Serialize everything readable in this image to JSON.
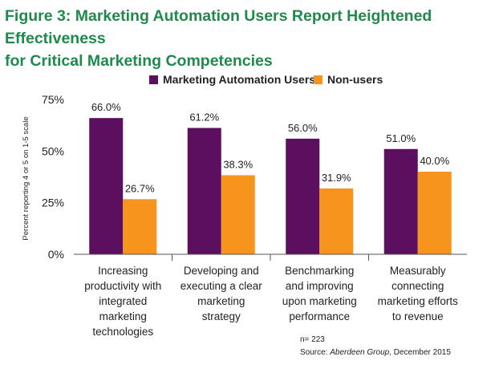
{
  "figure": {
    "title_line1": "Figure 3: Marketing Automation Users Report Heightened Effectiveness",
    "title_line2": "for Critical Marketing Competencies"
  },
  "footnote": {
    "n": "n= 223",
    "source_prefix": "Source: ",
    "source_org": "Aberdeen Group",
    "source_suffix": ", December 2015"
  },
  "colors": {
    "title": "#1f8a4c",
    "users": "#5b0f5e",
    "nonusers": "#f7941d",
    "axis": "#444444"
  },
  "chart_data": {
    "type": "bar",
    "ylabel": "Percent reporting 4 or 5 on 1-5 scale",
    "ylim": [
      0,
      75
    ],
    "yticks": [
      0,
      25,
      50,
      75
    ],
    "ytick_labels": [
      "0%",
      "25%",
      "50%",
      "75%"
    ],
    "legend_position": "top",
    "categories": [
      [
        "Increasing",
        "productivity with",
        "integrated",
        "marketing",
        "technologies"
      ],
      [
        "Developing and",
        "executing a clear",
        "marketing",
        "strategy"
      ],
      [
        "Benchmarking",
        "and improving",
        "upon marketing",
        "performance"
      ],
      [
        "Measurably",
        "connecting",
        "marketing efforts",
        "to revenue"
      ]
    ],
    "series": [
      {
        "name": "Marketing Automation Users",
        "color": "#5b0f5e",
        "values": [
          66.0,
          61.2,
          56.0,
          51.0
        ],
        "labels": [
          "66.0%",
          "61.2%",
          "56.0%",
          "51.0%"
        ]
      },
      {
        "name": "Non-users",
        "color": "#f7941d",
        "values": [
          26.7,
          38.3,
          31.9,
          40.0
        ],
        "labels": [
          "26.7%",
          "38.3%",
          "31.9%",
          "40.0%"
        ]
      }
    ]
  }
}
